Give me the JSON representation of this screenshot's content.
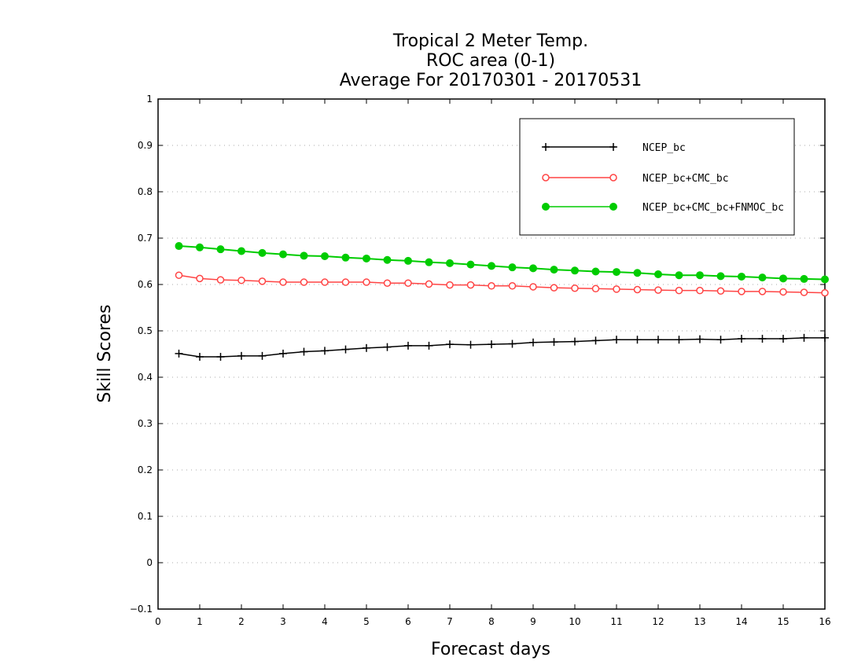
{
  "chart_data": {
    "type": "line",
    "title": [
      "Tropical 2 Meter Temp.",
      "ROC area (0-1)",
      "Average For 20170301 - 20170531"
    ],
    "xlabel": "Forecast days",
    "ylabel": "Skill Scores",
    "xlim": [
      0,
      16
    ],
    "ylim": [
      -0.1,
      1
    ],
    "xticks": [
      "0",
      "1",
      "2",
      "3",
      "4",
      "5",
      "6",
      "7",
      "8",
      "9",
      "10",
      "11",
      "12",
      "13",
      "14",
      "15",
      "16"
    ],
    "yticks": [
      "−0.1",
      "0",
      "0.1",
      "0.2",
      "0.3",
      "0.4",
      "0.5",
      "0.6",
      "0.7",
      "0.8",
      "0.9",
      "1"
    ],
    "grid": "horizontal dotted",
    "legend_position": "top-right",
    "x": [
      0.5,
      1,
      1.5,
      2,
      2.5,
      3,
      3.5,
      4,
      4.5,
      5,
      5.5,
      6,
      6.5,
      7,
      7.5,
      8,
      8.5,
      9,
      9.5,
      10,
      10.5,
      11,
      11.5,
      12,
      12.5,
      13,
      13.5,
      14,
      14.5,
      15,
      15.5,
      16
    ],
    "series": [
      {
        "name": "NCEP_bc",
        "color": "#000000",
        "marker": "plus",
        "values": [
          0.451,
          0.444,
          0.444,
          0.446,
          0.446,
          0.451,
          0.455,
          0.457,
          0.46,
          0.463,
          0.465,
          0.468,
          0.468,
          0.471,
          0.47,
          0.471,
          0.472,
          0.475,
          0.476,
          0.477,
          0.479,
          0.481,
          0.481,
          0.481,
          0.481,
          0.482,
          0.481,
          0.483,
          0.483,
          0.483,
          0.485,
          0.485
        ]
      },
      {
        "name": "NCEP_bc+CMC_bc",
        "color": "#ff4444",
        "marker": "open-circle",
        "values": [
          0.62,
          0.613,
          0.61,
          0.609,
          0.607,
          0.605,
          0.605,
          0.605,
          0.605,
          0.605,
          0.603,
          0.603,
          0.601,
          0.599,
          0.599,
          0.597,
          0.597,
          0.595,
          0.593,
          0.592,
          0.591,
          0.59,
          0.589,
          0.588,
          0.587,
          0.587,
          0.586,
          0.585,
          0.585,
          0.584,
          0.583,
          0.582
        ]
      },
      {
        "name": "NCEP_bc+CMC_bc+FNMOC_bc",
        "color": "#00cc00",
        "marker": "filled-circle",
        "values": [
          0.683,
          0.68,
          0.676,
          0.672,
          0.668,
          0.665,
          0.662,
          0.661,
          0.658,
          0.656,
          0.653,
          0.651,
          0.648,
          0.646,
          0.643,
          0.64,
          0.637,
          0.635,
          0.632,
          0.63,
          0.628,
          0.627,
          0.625,
          0.622,
          0.62,
          0.62,
          0.618,
          0.617,
          0.615,
          0.613,
          0.612,
          0.611
        ]
      }
    ]
  }
}
